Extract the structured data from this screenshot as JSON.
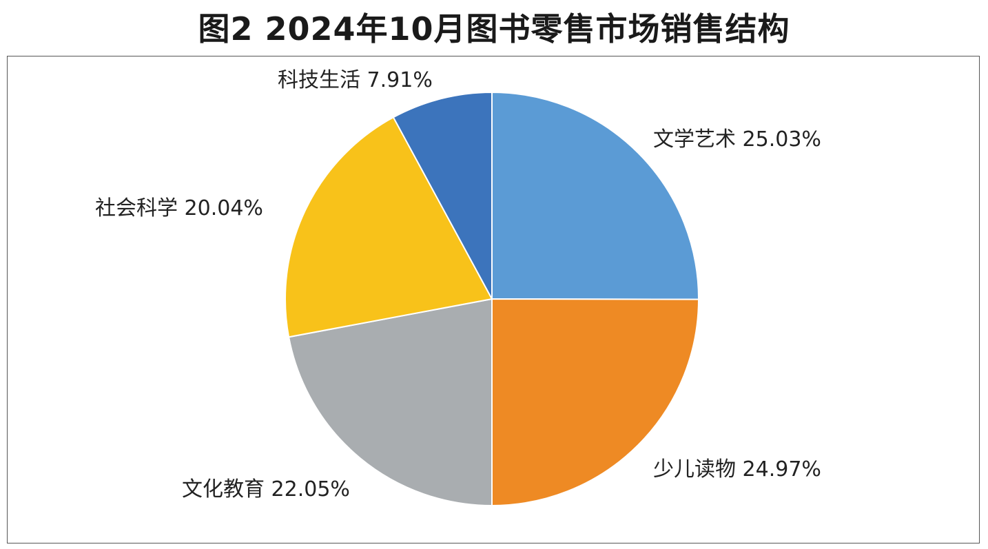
{
  "chart_data": {
    "type": "pie",
    "title": "图2  2024年10月图书零售市场销售结构",
    "categories": [
      "文学艺术",
      "少儿读物",
      "文化教育",
      "社会科学",
      "科技生活"
    ],
    "values": [
      25.03,
      24.97,
      22.05,
      20.04,
      7.91
    ],
    "value_unit": "%",
    "data_labels": [
      "文学艺术 25.03%",
      "少儿读物 24.97%",
      "文化教育 22.05%",
      "社会科学 20.04%",
      "科技生活 7.91%"
    ],
    "colors": [
      "#5B9BD5",
      "#EE8A24",
      "#A9ADB0",
      "#F8C21A",
      "#3C74BC"
    ],
    "start_angle": "12 o'clock",
    "direction": "clockwise",
    "legend": "none"
  }
}
